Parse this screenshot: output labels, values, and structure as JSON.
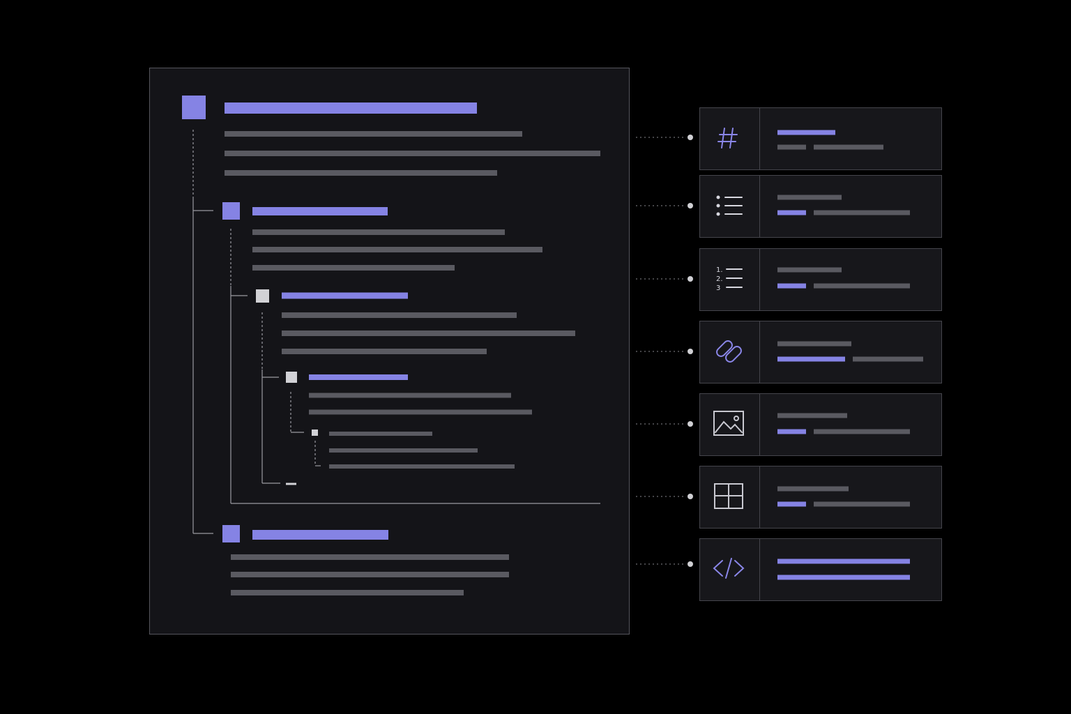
{
  "numbered_list_icon": {
    "markers": [
      "1.",
      "2.",
      "3"
    ]
  }
}
